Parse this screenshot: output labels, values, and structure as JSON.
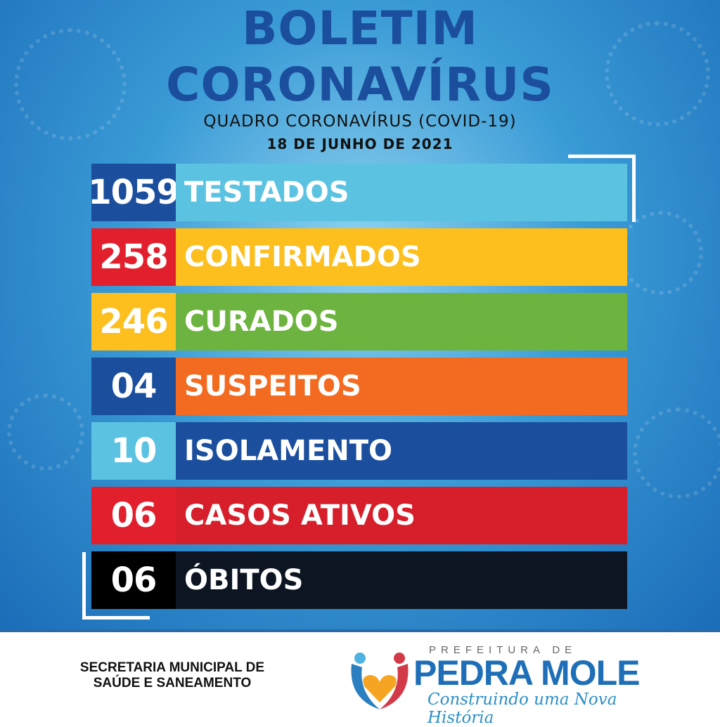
{
  "header": {
    "title_line1": "BOLETIM",
    "title_line2": "CORONAVÍRUS",
    "subtitle": "QUADRO CORONAVÍRUS (COVID-19)",
    "date": "18 DE JUNHO DE 2021"
  },
  "rows": [
    {
      "value": "1059",
      "label": "TESTADOS",
      "value_color": "#1b4f9e",
      "label_color": "#5bc3e1"
    },
    {
      "value": "258",
      "label": "CONFIRMADOS",
      "value_color": "#e21f2d",
      "label_color": "#fcbf1e"
    },
    {
      "value": "246",
      "label": "CURADOS",
      "value_color": "#fcbf1e",
      "label_color": "#6db33f"
    },
    {
      "value": "04",
      "label": "SUSPEITOS",
      "value_color": "#1b4f9e",
      "label_color": "#f36b21"
    },
    {
      "value": "10",
      "label": "ISOLAMENTO",
      "value_color": "#5bc3e1",
      "label_color": "#1b4f9e"
    },
    {
      "value": "06",
      "label": "CASOS ATIVOS",
      "value_color": "#e21f2d",
      "label_color": "#d61f2b"
    },
    {
      "value": "06",
      "label": "ÓBITOS",
      "value_color": "#000000",
      "label_color": "#0c1521"
    }
  ],
  "footer": {
    "dept_line1": "SECRETARIA MUNICIPAL DE",
    "dept_line2": "SAÚDE E SANEAMENTO",
    "logo_prefix": "PREFEITURA DE",
    "logo_name": "PEDRA MOLE",
    "logo_slogan": "Construindo uma Nova História"
  }
}
